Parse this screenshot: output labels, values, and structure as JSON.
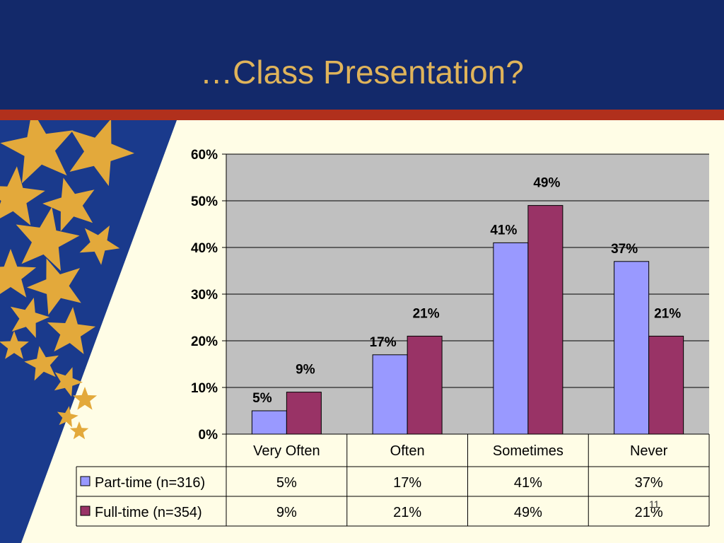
{
  "slide": {
    "title": "…Class Presentation?",
    "slide_number": "11",
    "colors": {
      "header": "#13296a",
      "stripe": "#b1301c",
      "background": "#fffde6",
      "title": "#e0b45a",
      "stars": "#e3a93b"
    }
  },
  "chart_data": {
    "type": "bar",
    "title": "",
    "xlabel": "",
    "ylabel": "",
    "categories": [
      "Very Often",
      "Often",
      "Sometimes",
      "Never"
    ],
    "series": [
      {
        "name": "Part-time (n=316)",
        "values": [
          5,
          17,
          41,
          37
        ],
        "labels": [
          "5%",
          "17%",
          "41%",
          "37%"
        ],
        "color": "#9999ff"
      },
      {
        "name": "Full-time (n=354)",
        "values": [
          9,
          21,
          49,
          21
        ],
        "labels": [
          "9%",
          "21%",
          "49%",
          "21%"
        ],
        "color": "#993366"
      }
    ],
    "ylim": [
      0,
      60
    ],
    "yticks": [
      "0%",
      "10%",
      "20%",
      "30%",
      "40%",
      "50%",
      "60%"
    ],
    "grid": true,
    "plot_background": "#c0c0c0",
    "legend": "data-table"
  }
}
